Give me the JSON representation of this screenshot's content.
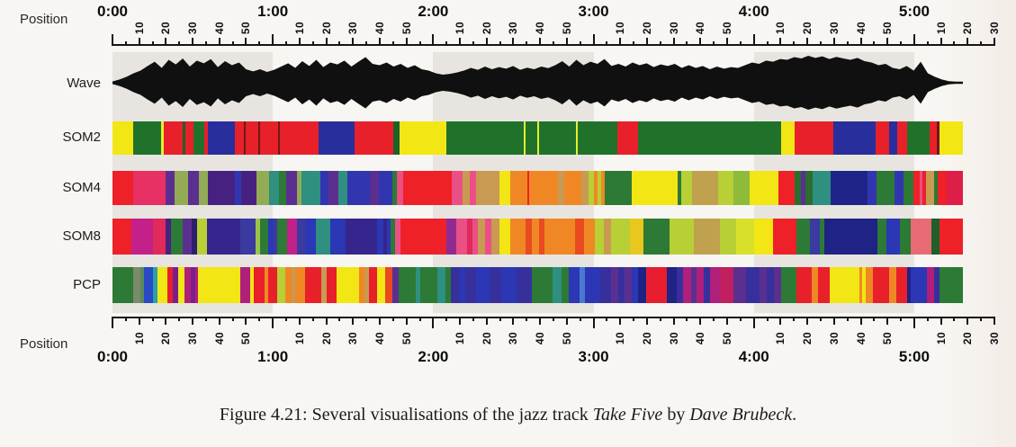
{
  "axis": {
    "position_label": "Position",
    "total_seconds": 330,
    "minor_tick_seconds": 5,
    "labeled_tick_seconds": 10,
    "minute_labels": [
      "0:00",
      "1:00",
      "2:00",
      "3:00",
      "4:00",
      "5:00"
    ],
    "second_labels": [
      "10",
      "20",
      "30",
      "40",
      "50"
    ],
    "shaded_minutes": [
      0,
      2,
      4
    ],
    "band_color": "#e8e5e1",
    "tick_color": "#151515"
  },
  "rows": {
    "wave": {
      "label": "Wave"
    },
    "som2": {
      "label": "SOM2"
    },
    "som4": {
      "label": "SOM4"
    },
    "som8": {
      "label": "SOM8"
    },
    "pcp": {
      "label": "PCP"
    }
  },
  "caption": {
    "prefix": "Figure 4.21: ",
    "body": "Several visualisations of the jazz track ",
    "italic1": "Take Five",
    "mid": " by ",
    "italic2": "Dave Brubeck",
    "end": "."
  },
  "chart_data": [
    {
      "type": "area",
      "name": "waveform",
      "title": "Wave",
      "x_range_seconds": [
        0,
        318
      ],
      "color": "#101010",
      "envelope": [
        0.05,
        0.12,
        0.22,
        0.35,
        0.45,
        0.62,
        0.78,
        0.55,
        0.85,
        0.68,
        0.9,
        0.6,
        0.82,
        0.72,
        0.88,
        0.58,
        0.8,
        0.65,
        0.75,
        0.5,
        0.42,
        0.5,
        0.4,
        0.48,
        0.6,
        0.72,
        0.55,
        0.8,
        0.62,
        0.85,
        0.58,
        0.75,
        0.68,
        0.82,
        0.6,
        0.78,
        0.95,
        0.7,
        0.65,
        0.75,
        0.6,
        0.7,
        0.55,
        0.65,
        0.5,
        0.45,
        0.35,
        0.3,
        0.33,
        0.38,
        0.45,
        0.55,
        0.48,
        0.6,
        0.5,
        0.58,
        0.52,
        0.62,
        0.48,
        0.56,
        0.5,
        0.6,
        0.54,
        0.65,
        0.8,
        0.6,
        0.85,
        0.65,
        0.78,
        0.7,
        0.88,
        0.62,
        0.7,
        0.6,
        0.75,
        0.65,
        0.72,
        0.58,
        0.68,
        0.62,
        0.7,
        0.55,
        0.65,
        0.55,
        0.62,
        0.5,
        0.6,
        0.52,
        0.58,
        0.55,
        0.65,
        0.75,
        0.7,
        0.82,
        0.78,
        0.88,
        0.85,
        0.95,
        0.9,
        1.0,
        0.92,
        0.98,
        0.88,
        0.96,
        0.9,
        0.85,
        0.92,
        0.8,
        0.75,
        0.65,
        0.7,
        0.55,
        0.5,
        0.62,
        0.45,
        0.78,
        0.35,
        0.22,
        0.12,
        0.06,
        0.04,
        0.04
      ]
    },
    {
      "type": "heatmap",
      "name": "som2",
      "title": "SOM2",
      "segments": [
        [
          2.4,
          "#f2e614"
        ],
        [
          3.3,
          "#20722b"
        ],
        [
          0.3,
          "#e5ee2e"
        ],
        [
          2.3,
          "#e8202a"
        ],
        [
          0.3,
          "#1f5f28"
        ],
        [
          0.9,
          "#e8202a"
        ],
        [
          1.3,
          "#20722b"
        ],
        [
          0.4,
          "#e8202a"
        ],
        [
          3.2,
          "#282e9c"
        ],
        [
          1.1,
          "#e8202a"
        ],
        [
          0.2,
          "#6b1a1a"
        ],
        [
          1.5,
          "#e8202a"
        ],
        [
          0.2,
          "#6b1a1a"
        ],
        [
          2.1,
          "#e8202a"
        ],
        [
          0.2,
          "#6b1a1a"
        ],
        [
          4.6,
          "#e8202a"
        ],
        [
          4.2,
          "#282e9c"
        ],
        [
          4.6,
          "#e8202a"
        ],
        [
          0.7,
          "#1f5f28"
        ],
        [
          5.5,
          "#f2e614"
        ],
        [
          9.1,
          "#20722b"
        ],
        [
          0.2,
          "#e5ee2e"
        ],
        [
          1.4,
          "#20722b"
        ],
        [
          0.2,
          "#e5ee2e"
        ],
        [
          4.4,
          "#20722b"
        ],
        [
          0.2,
          "#e5ee2e"
        ],
        [
          4.6,
          "#20722b"
        ],
        [
          2.5,
          "#e8202a"
        ],
        [
          16.8,
          "#20722b"
        ],
        [
          1.6,
          "#f2e614"
        ],
        [
          4.6,
          "#e8202a"
        ],
        [
          4.9,
          "#282e9c"
        ],
        [
          1.6,
          "#e8202a"
        ],
        [
          1.0,
          "#282e9c"
        ],
        [
          1.1,
          "#e8202a"
        ],
        [
          2.7,
          "#20722b"
        ],
        [
          0.8,
          "#e8202a"
        ],
        [
          0.3,
          "#6b1a1a"
        ],
        [
          2.8,
          "#f2e614"
        ]
      ]
    },
    {
      "type": "heatmap",
      "name": "som4",
      "title": "SOM4",
      "segments": [
        [
          2.4,
          "#ee2128"
        ],
        [
          3.8,
          "#e73064"
        ],
        [
          1.0,
          "#5b2f90"
        ],
        [
          1.6,
          "#93ab55"
        ],
        [
          1.3,
          "#5b2f90"
        ],
        [
          1.0,
          "#93ab55"
        ],
        [
          3.2,
          "#472180"
        ],
        [
          0.7,
          "#3136b0"
        ],
        [
          1.8,
          "#472180"
        ],
        [
          1.5,
          "#93ab55"
        ],
        [
          1.1,
          "#2f8f80"
        ],
        [
          0.9,
          "#2c7a35"
        ],
        [
          1.2,
          "#5b2f90"
        ],
        [
          0.5,
          "#93ab55"
        ],
        [
          2.2,
          "#2f8f80"
        ],
        [
          1.0,
          "#3136b0"
        ],
        [
          1.1,
          "#5b2f90"
        ],
        [
          1.1,
          "#2f8f80"
        ],
        [
          2.6,
          "#3136b0"
        ],
        [
          1.1,
          "#5b2f90"
        ],
        [
          1.5,
          "#3136b0"
        ],
        [
          0.6,
          "#2c7a35"
        ],
        [
          0.7,
          "#ea4f85"
        ],
        [
          5.7,
          "#ee2128"
        ],
        [
          1.2,
          "#ea4f85"
        ],
        [
          0.9,
          "#c89a52"
        ],
        [
          0.7,
          "#ea4f85"
        ],
        [
          2.7,
          "#c89a52"
        ],
        [
          1.3,
          "#f2e614"
        ],
        [
          2.0,
          "#ef8824"
        ],
        [
          0.2,
          "#ee2128"
        ],
        [
          3.4,
          "#ef8824"
        ],
        [
          0.7,
          "#c89a52"
        ],
        [
          2.0,
          "#ef8824"
        ],
        [
          0.8,
          "#c89a52"
        ],
        [
          0.6,
          "#b8cf35"
        ],
        [
          0.5,
          "#ef8824"
        ],
        [
          0.4,
          "#b8cf35"
        ],
        [
          0.4,
          "#ef8824"
        ],
        [
          3.2,
          "#2c7a35"
        ],
        [
          5.3,
          "#f2e614"
        ],
        [
          0.4,
          "#2c7a35"
        ],
        [
          1.3,
          "#b8cf35"
        ],
        [
          3.0,
          "#bfa14e"
        ],
        [
          1.8,
          "#b8cf35"
        ],
        [
          1.9,
          "#8fbb3a"
        ],
        [
          3.4,
          "#f2e614"
        ],
        [
          1.9,
          "#ee2128"
        ],
        [
          0.7,
          "#2a6e2f"
        ],
        [
          0.5,
          "#5b2f90"
        ],
        [
          0.9,
          "#2a6e2f"
        ],
        [
          2.1,
          "#2f8f80"
        ],
        [
          4.3,
          "#1f2488"
        ],
        [
          1.0,
          "#3136b0"
        ],
        [
          2.1,
          "#2c7a35"
        ],
        [
          1.1,
          "#3136b0"
        ],
        [
          1.1,
          "#2c7a35"
        ],
        [
          0.7,
          "#ee2128"
        ],
        [
          0.4,
          "#ea4f85"
        ],
        [
          0.4,
          "#ee2128"
        ],
        [
          0.9,
          "#c89a52"
        ],
        [
          0.5,
          "#2c7a35"
        ],
        [
          1.0,
          "#ee2128"
        ],
        [
          1.9,
          "#dd1f47"
        ]
      ]
    },
    {
      "type": "heatmap",
      "name": "som8",
      "title": "SOM8",
      "segments": [
        [
          2.2,
          "#ee2128"
        ],
        [
          2.6,
          "#c4208a"
        ],
        [
          1.4,
          "#e02a5a"
        ],
        [
          0.7,
          "#472180"
        ],
        [
          1.4,
          "#2c7a35"
        ],
        [
          1.0,
          "#5b2f90"
        ],
        [
          0.6,
          "#2d1f6e"
        ],
        [
          1.2,
          "#b8cf35"
        ],
        [
          3.9,
          "#35258c"
        ],
        [
          1.8,
          "#3a3aa0"
        ],
        [
          0.5,
          "#9cc44a"
        ],
        [
          1.0,
          "#2c7a35"
        ],
        [
          0.6,
          "#2b37b4"
        ],
        [
          0.5,
          "#3a3aa0"
        ],
        [
          1.1,
          "#2c7a35"
        ],
        [
          1.2,
          "#c4208a"
        ],
        [
          0.9,
          "#3a3aa0"
        ],
        [
          1.3,
          "#2b37b4"
        ],
        [
          1.7,
          "#2f8f80"
        ],
        [
          1.8,
          "#2b37b4"
        ],
        [
          3.7,
          "#35258c"
        ],
        [
          0.7,
          "#2b37b4"
        ],
        [
          0.5,
          "#35258c"
        ],
        [
          0.4,
          "#2b37b4"
        ],
        [
          0.5,
          "#2c7a35"
        ],
        [
          0.7,
          "#ea4f85"
        ],
        [
          5.4,
          "#ee2128"
        ],
        [
          1.1,
          "#8f2b8f"
        ],
        [
          1.3,
          "#ea4f85"
        ],
        [
          0.6,
          "#e02a5a"
        ],
        [
          0.7,
          "#ea4f85"
        ],
        [
          0.8,
          "#c89a52"
        ],
        [
          0.8,
          "#ea4f85"
        ],
        [
          0.9,
          "#c89a52"
        ],
        [
          1.3,
          "#f2e614"
        ],
        [
          1.8,
          "#ef8824"
        ],
        [
          0.7,
          "#ea4a20"
        ],
        [
          0.9,
          "#ef8824"
        ],
        [
          0.6,
          "#ea4a20"
        ],
        [
          3.6,
          "#ef8824"
        ],
        [
          1.1,
          "#ea4a20"
        ],
        [
          1.2,
          "#ef8824"
        ],
        [
          1.1,
          "#b8cf35"
        ],
        [
          0.8,
          "#c89a52"
        ],
        [
          2.2,
          "#b8cf35"
        ],
        [
          1.6,
          "#e8c81e"
        ],
        [
          3.1,
          "#2c7a35"
        ],
        [
          2.9,
          "#b8cf35"
        ],
        [
          3.0,
          "#bfa14e"
        ],
        [
          1.9,
          "#b8cf35"
        ],
        [
          2.1,
          "#d8e02a"
        ],
        [
          2.3,
          "#f2e614"
        ],
        [
          2.7,
          "#ee2128"
        ],
        [
          1.6,
          "#2c7a35"
        ],
        [
          1.2,
          "#3a3aa0"
        ],
        [
          0.5,
          "#2c7a35"
        ],
        [
          6.2,
          "#1f2386"
        ],
        [
          1.1,
          "#2c7a35"
        ],
        [
          1.6,
          "#2b37b4"
        ],
        [
          1.3,
          "#2c7a35"
        ],
        [
          2.4,
          "#e86b74"
        ],
        [
          1.0,
          "#1f5f28"
        ],
        [
          2.7,
          "#ee2128"
        ]
      ]
    },
    {
      "type": "heatmap",
      "name": "pcp",
      "title": "PCP",
      "segments": [
        [
          2.4,
          "#2c7a35"
        ],
        [
          0.9,
          "#7a8a6a"
        ],
        [
          0.4,
          "#5a8a5a"
        ],
        [
          1.1,
          "#2b49c4"
        ],
        [
          0.5,
          "#2aa0a8"
        ],
        [
          1.2,
          "#f2e614"
        ],
        [
          0.6,
          "#e8202a"
        ],
        [
          0.6,
          "#7a1f8a"
        ],
        [
          0.8,
          "#f2e614"
        ],
        [
          0.7,
          "#b01f7a"
        ],
        [
          0.5,
          "#7a1f8a"
        ],
        [
          0.4,
          "#b01f7a"
        ],
        [
          4.9,
          "#f2e614"
        ],
        [
          1.2,
          "#b01f7a"
        ],
        [
          0.4,
          "#f2e614"
        ],
        [
          1.3,
          "#e8202a"
        ],
        [
          0.4,
          "#ef8824"
        ],
        [
          1.1,
          "#e8202a"
        ],
        [
          0.9,
          "#b8cf35"
        ],
        [
          0.8,
          "#ef8824"
        ],
        [
          0.4,
          "#c89a52"
        ],
        [
          1.1,
          "#ef8824"
        ],
        [
          1.9,
          "#e8202a"
        ],
        [
          0.7,
          "#c89a52"
        ],
        [
          1.1,
          "#e8202a"
        ],
        [
          2.7,
          "#f2e614"
        ],
        [
          0.6,
          "#ef8824"
        ],
        [
          0.6,
          "#c89a52"
        ],
        [
          0.9,
          "#e8202a"
        ],
        [
          1.0,
          "#f2e614"
        ],
        [
          0.8,
          "#ea4a20"
        ],
        [
          0.8,
          "#5b2f90"
        ],
        [
          2.0,
          "#2c7a35"
        ],
        [
          0.5,
          "#2f8f80"
        ],
        [
          2.0,
          "#2c7a35"
        ],
        [
          1.0,
          "#2f8f80"
        ],
        [
          0.6,
          "#2c7a35"
        ],
        [
          1.0,
          "#37309c"
        ],
        [
          0.7,
          "#2b37b4"
        ],
        [
          1.2,
          "#37309c"
        ],
        [
          1.6,
          "#2b37b4"
        ],
        [
          1.4,
          "#37309c"
        ],
        [
          1.8,
          "#2b37b4"
        ],
        [
          1.8,
          "#37309c"
        ],
        [
          2.4,
          "#2c7a35"
        ],
        [
          1.1,
          "#2f8f80"
        ],
        [
          0.8,
          "#2c7a35"
        ],
        [
          1.3,
          "#2b37b4"
        ],
        [
          0.6,
          "#4a7ad0"
        ],
        [
          1.9,
          "#2b37b4"
        ],
        [
          1.2,
          "#37309c"
        ],
        [
          0.9,
          "#5b2f90"
        ],
        [
          0.7,
          "#37309c"
        ],
        [
          0.9,
          "#5b2f90"
        ],
        [
          0.7,
          "#2b37b4"
        ],
        [
          0.9,
          "#1f2386"
        ],
        [
          2.5,
          "#e81e30"
        ],
        [
          1.1,
          "#1f2386"
        ],
        [
          0.8,
          "#37309c"
        ],
        [
          0.9,
          "#b01f7a"
        ],
        [
          0.7,
          "#5b2f90"
        ],
        [
          0.8,
          "#b01f7a"
        ],
        [
          0.8,
          "#37309c"
        ],
        [
          1.1,
          "#b01f7a"
        ],
        [
          1.6,
          "#c02060"
        ],
        [
          1.5,
          "#5b2f90"
        ],
        [
          1.6,
          "#37309c"
        ],
        [
          0.8,
          "#5b2f90"
        ],
        [
          0.9,
          "#37309c"
        ],
        [
          0.8,
          "#5b2f90"
        ],
        [
          1.8,
          "#2c7a35"
        ],
        [
          1.8,
          "#e8202a"
        ],
        [
          0.8,
          "#ef8824"
        ],
        [
          1.3,
          "#e8202a"
        ],
        [
          3.5,
          "#f2e614"
        ],
        [
          0.3,
          "#ef8824"
        ],
        [
          0.5,
          "#f2e614"
        ],
        [
          0.8,
          "#ef8824"
        ],
        [
          1.9,
          "#e8202a"
        ],
        [
          0.9,
          "#ef8824"
        ],
        [
          1.2,
          "#e8202a"
        ],
        [
          0.5,
          "#1f2386"
        ],
        [
          1.9,
          "#2b37b4"
        ],
        [
          0.8,
          "#b01f7a"
        ],
        [
          0.7,
          "#37309c"
        ],
        [
          2.7,
          "#2c7a35"
        ]
      ]
    }
  ]
}
